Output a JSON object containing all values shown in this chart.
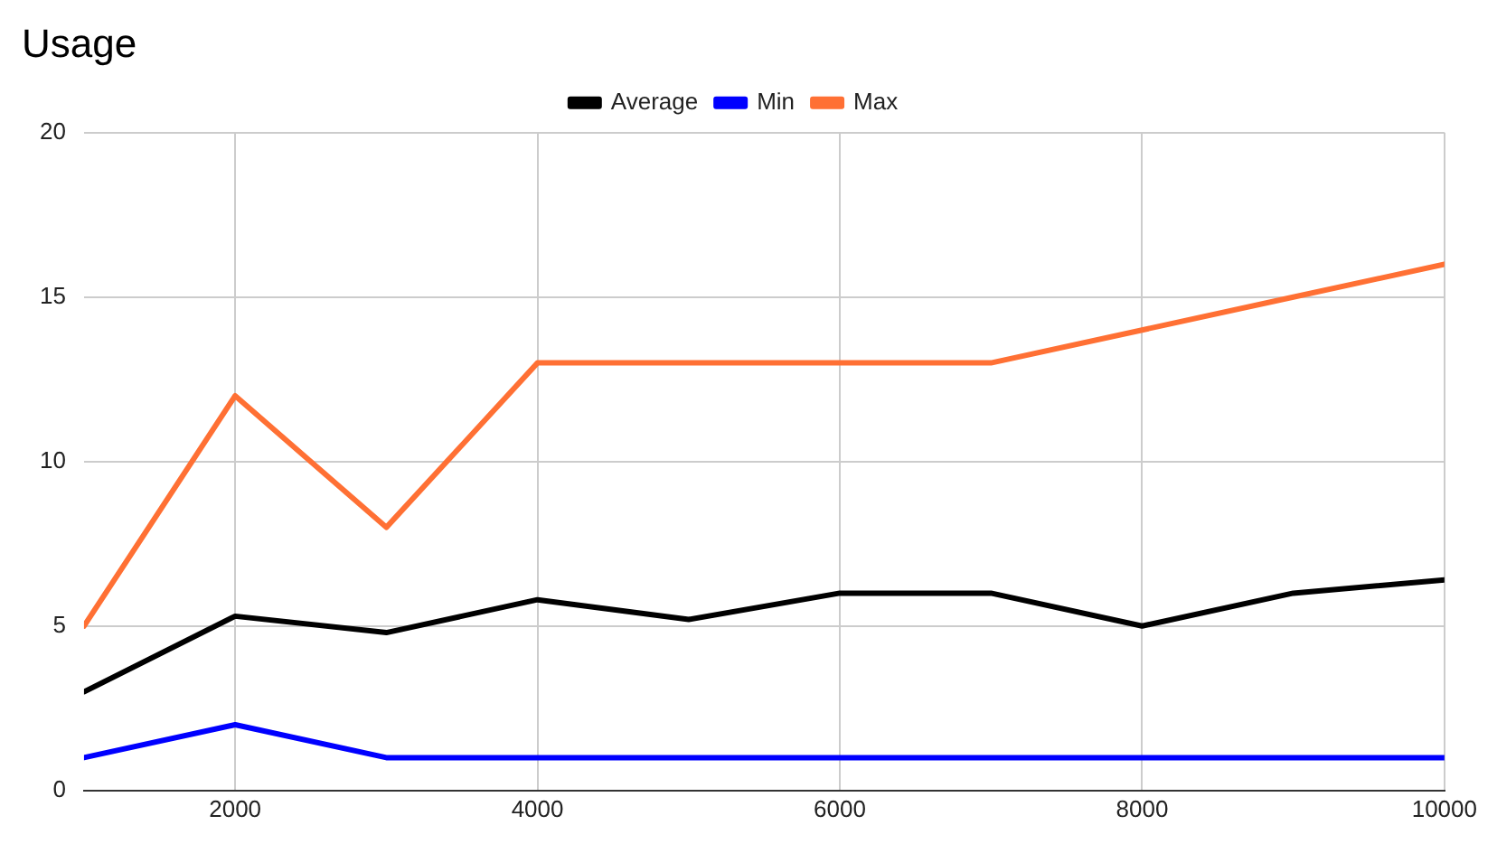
{
  "chart_data": {
    "type": "line",
    "title": "Usage",
    "x": [
      1000,
      2000,
      3000,
      4000,
      5000,
      6000,
      7000,
      8000,
      9000,
      10000
    ],
    "series": [
      {
        "name": "Average",
        "color": "#000000",
        "values": [
          3.0,
          5.3,
          4.8,
          5.8,
          5.2,
          6.0,
          6.0,
          5.0,
          6.0,
          6.4
        ]
      },
      {
        "name": "Min",
        "color": "#0000ff",
        "values": [
          1,
          2,
          1,
          1,
          1,
          1,
          1,
          1,
          1,
          1
        ]
      },
      {
        "name": "Max",
        "color": "#ff7034",
        "values": [
          5,
          12,
          8,
          13,
          13,
          13,
          13,
          14,
          15,
          16
        ]
      }
    ],
    "xlim": [
      1000,
      10000
    ],
    "xticks": [
      2000,
      4000,
      6000,
      8000,
      10000
    ],
    "ylim": [
      0,
      20
    ],
    "yticks": [
      0,
      5,
      10,
      15,
      20
    ],
    "grid": true,
    "legend": "top",
    "marker": "none",
    "line_style": "solid"
  }
}
